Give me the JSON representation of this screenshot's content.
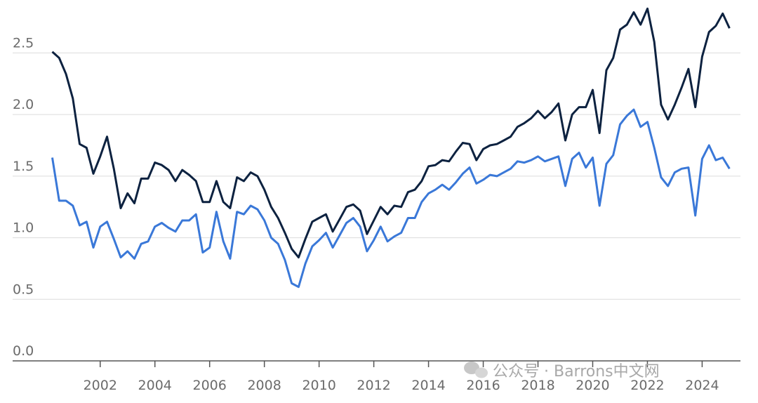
{
  "chart_data": {
    "type": "line",
    "x": [
      2000.25,
      2000.5,
      2000.75,
      2001,
      2001.25,
      2001.5,
      2001.75,
      2002,
      2002.25,
      2002.5,
      2002.75,
      2003,
      2003.25,
      2003.5,
      2003.75,
      2004,
      2004.25,
      2004.5,
      2004.75,
      2005,
      2005.25,
      2005.5,
      2005.75,
      2006,
      2006.25,
      2006.5,
      2006.75,
      2007,
      2007.25,
      2007.5,
      2007.75,
      2008,
      2008.25,
      2008.5,
      2008.75,
      2009,
      2009.25,
      2009.5,
      2009.75,
      2010,
      2010.25,
      2010.5,
      2010.75,
      2011,
      2011.25,
      2011.5,
      2011.75,
      2012,
      2012.25,
      2012.5,
      2012.75,
      2013,
      2013.25,
      2013.5,
      2013.75,
      2014,
      2014.25,
      2014.5,
      2014.75,
      2015,
      2015.25,
      2015.5,
      2015.75,
      2016,
      2016.25,
      2016.5,
      2016.75,
      2017,
      2017.25,
      2017.5,
      2017.75,
      2018,
      2018.25,
      2018.5,
      2018.75,
      2019,
      2019.25,
      2019.5,
      2019.75,
      2020,
      2020.25,
      2020.5,
      2020.75,
      2021,
      2021.25,
      2021.5,
      2021.75,
      2022,
      2022.25,
      2022.5,
      2022.75,
      2023,
      2023.25,
      2023.5,
      2023.75,
      2024,
      2024.25,
      2024.5,
      2024.75,
      2025
    ],
    "series": [
      {
        "color": "#0d2240",
        "values": [
          2.51,
          2.46,
          2.33,
          2.13,
          1.76,
          1.73,
          1.52,
          1.66,
          1.82,
          1.56,
          1.24,
          1.36,
          1.28,
          1.48,
          1.48,
          1.61,
          1.59,
          1.55,
          1.46,
          1.55,
          1.51,
          1.46,
          1.29,
          1.29,
          1.46,
          1.29,
          1.24,
          1.49,
          1.46,
          1.53,
          1.5,
          1.39,
          1.25,
          1.16,
          1.04,
          0.91,
          0.84,
          0.99,
          1.13,
          1.16,
          1.19,
          1.05,
          1.15,
          1.25,
          1.27,
          1.22,
          1.03,
          1.14,
          1.25,
          1.19,
          1.26,
          1.25,
          1.37,
          1.39,
          1.46,
          1.58,
          1.59,
          1.63,
          1.62,
          1.7,
          1.77,
          1.76,
          1.63,
          1.72,
          1.75,
          1.76,
          1.79,
          1.82,
          1.9,
          1.93,
          1.97,
          2.03,
          1.97,
          2.02,
          2.09,
          1.79,
          2.0,
          2.06,
          2.06,
          2.2,
          1.85,
          2.36,
          2.46,
          2.69,
          2.73,
          2.83,
          2.73,
          2.86,
          2.59,
          2.08,
          1.96,
          2.08,
          2.22,
          2.37,
          2.06,
          2.47,
          2.67,
          2.72,
          2.82,
          2.7
        ]
      },
      {
        "color": "#3a78d8",
        "values": [
          1.65,
          1.3,
          1.3,
          1.26,
          1.1,
          1.13,
          0.92,
          1.09,
          1.13,
          0.99,
          0.84,
          0.89,
          0.83,
          0.95,
          0.97,
          1.09,
          1.12,
          1.08,
          1.05,
          1.14,
          1.14,
          1.19,
          0.88,
          0.92,
          1.21,
          0.97,
          0.83,
          1.21,
          1.19,
          1.26,
          1.23,
          1.14,
          1.0,
          0.95,
          0.82,
          0.63,
          0.6,
          0.79,
          0.93,
          0.98,
          1.04,
          0.92,
          1.02,
          1.12,
          1.16,
          1.09,
          0.89,
          0.98,
          1.09,
          0.97,
          1.01,
          1.04,
          1.16,
          1.16,
          1.29,
          1.36,
          1.39,
          1.43,
          1.39,
          1.45,
          1.52,
          1.57,
          1.44,
          1.47,
          1.51,
          1.5,
          1.53,
          1.56,
          1.62,
          1.61,
          1.63,
          1.66,
          1.62,
          1.64,
          1.66,
          1.42,
          1.64,
          1.69,
          1.57,
          1.65,
          1.26,
          1.6,
          1.67,
          1.92,
          1.99,
          2.04,
          1.9,
          1.94,
          1.73,
          1.49,
          1.42,
          1.53,
          1.56,
          1.57,
          1.18,
          1.64,
          1.75,
          1.63,
          1.65,
          1.56
        ]
      }
    ],
    "xlim": [
      1998.8,
      2025.4
    ],
    "xticks": [
      2002,
      2004,
      2006,
      2008,
      2010,
      2012,
      2014,
      2016,
      2018,
      2020,
      2022,
      2024
    ],
    "ylim": [
      0,
      2.93
    ],
    "yticks": [
      {
        "value": 0,
        "label": "0.0"
      },
      0.5,
      {
        "value": 1,
        "label": "1.0"
      },
      1.5,
      {
        "value": 2,
        "label": "2.0"
      },
      2.5
    ],
    "grid": true,
    "watermark": "公众号 · Barrons中文网"
  }
}
